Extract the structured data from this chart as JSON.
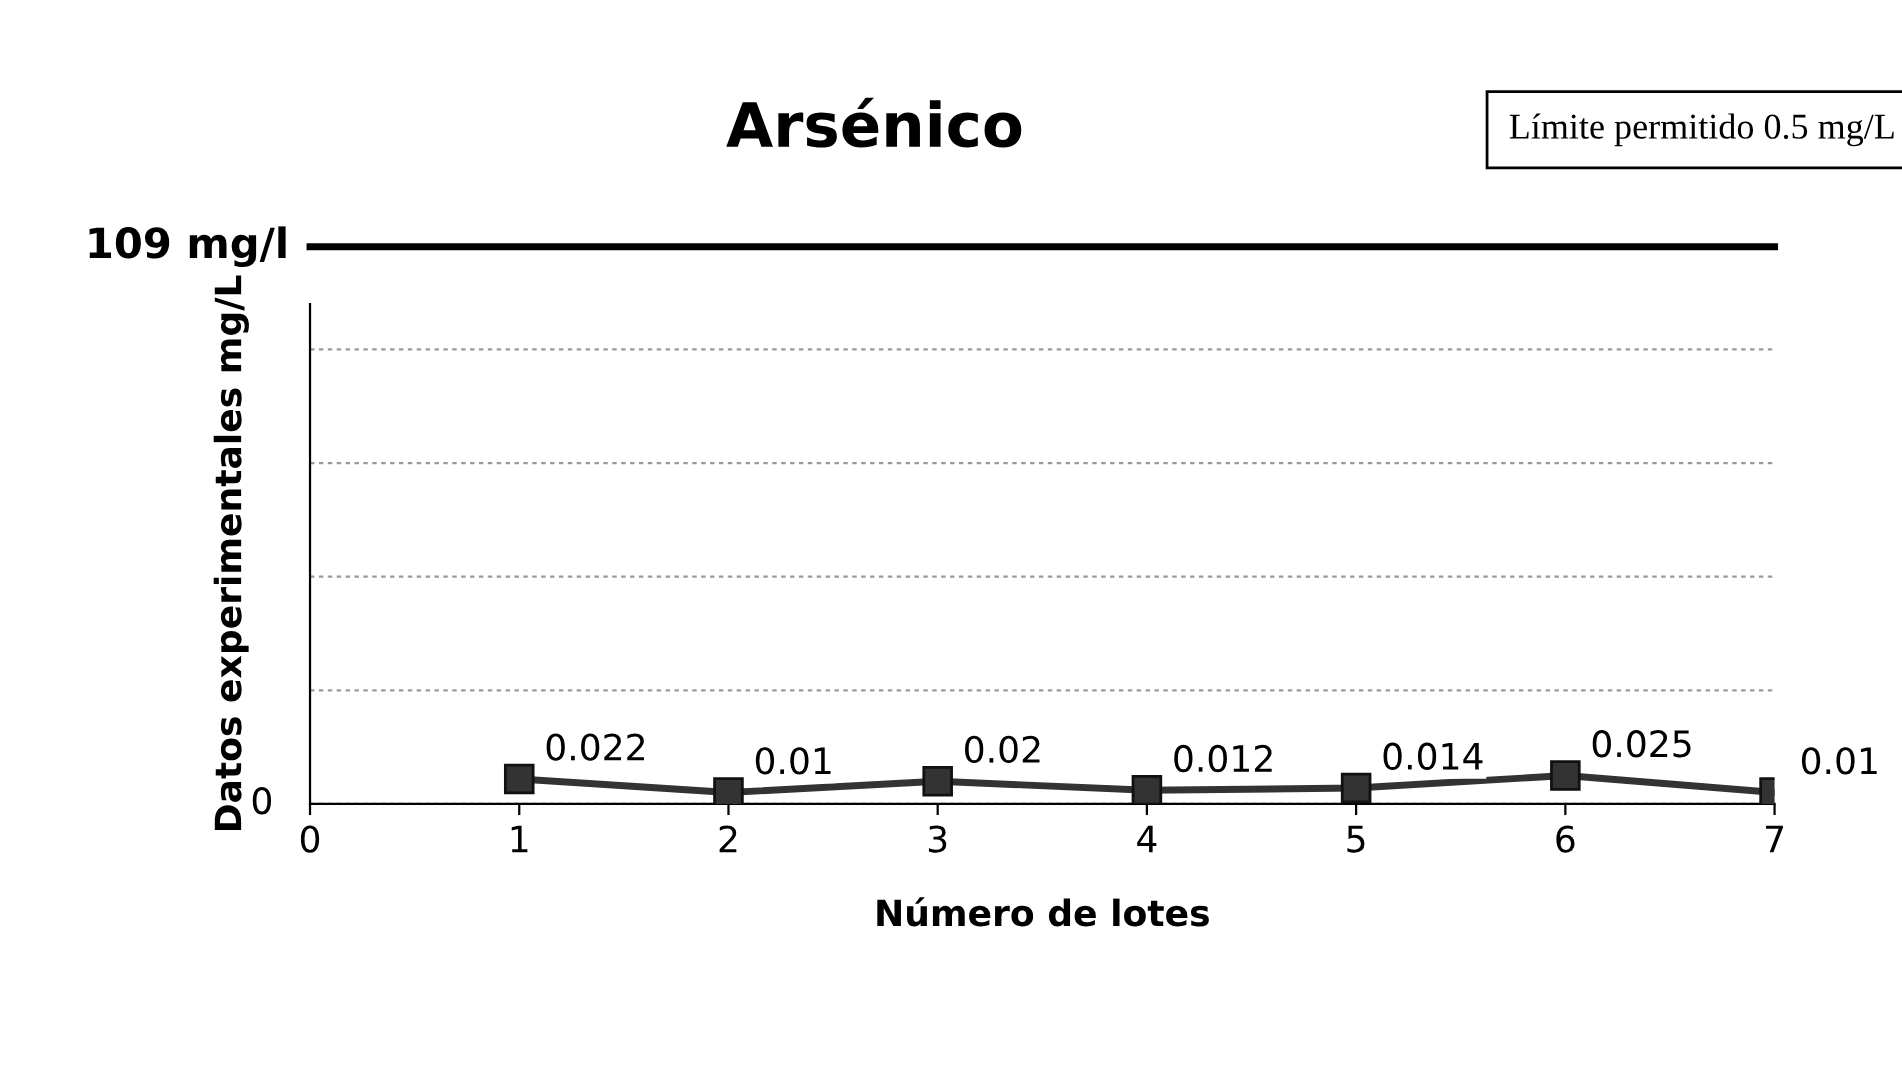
{
  "chart_data": {
    "type": "line",
    "title": "Arsénico",
    "xlabel": "Número de lotes",
    "ylabel": "Datos experimentales mg/L",
    "annotations": [
      "Límite permitido 0.5 mg/L",
      "109 mg/l",
      "0"
    ],
    "x": [
      1,
      2,
      3,
      4,
      5,
      6,
      7
    ],
    "series": [
      {
        "color": "#333333",
        "values": [
          0.022,
          0.01,
          0.02,
          0.012,
          0.014,
          0.025,
          0.01
        ]
      }
    ],
    "data_labels": true,
    "marker": "square",
    "line_style": "solid",
    "xlim": [
      0,
      7
    ],
    "xticks": [
      0,
      1,
      2,
      3,
      4,
      5,
      6,
      7
    ],
    "ylim": [
      0,
      0.44
    ],
    "tick_labels": "x",
    "grid": "y",
    "legend": false
  }
}
